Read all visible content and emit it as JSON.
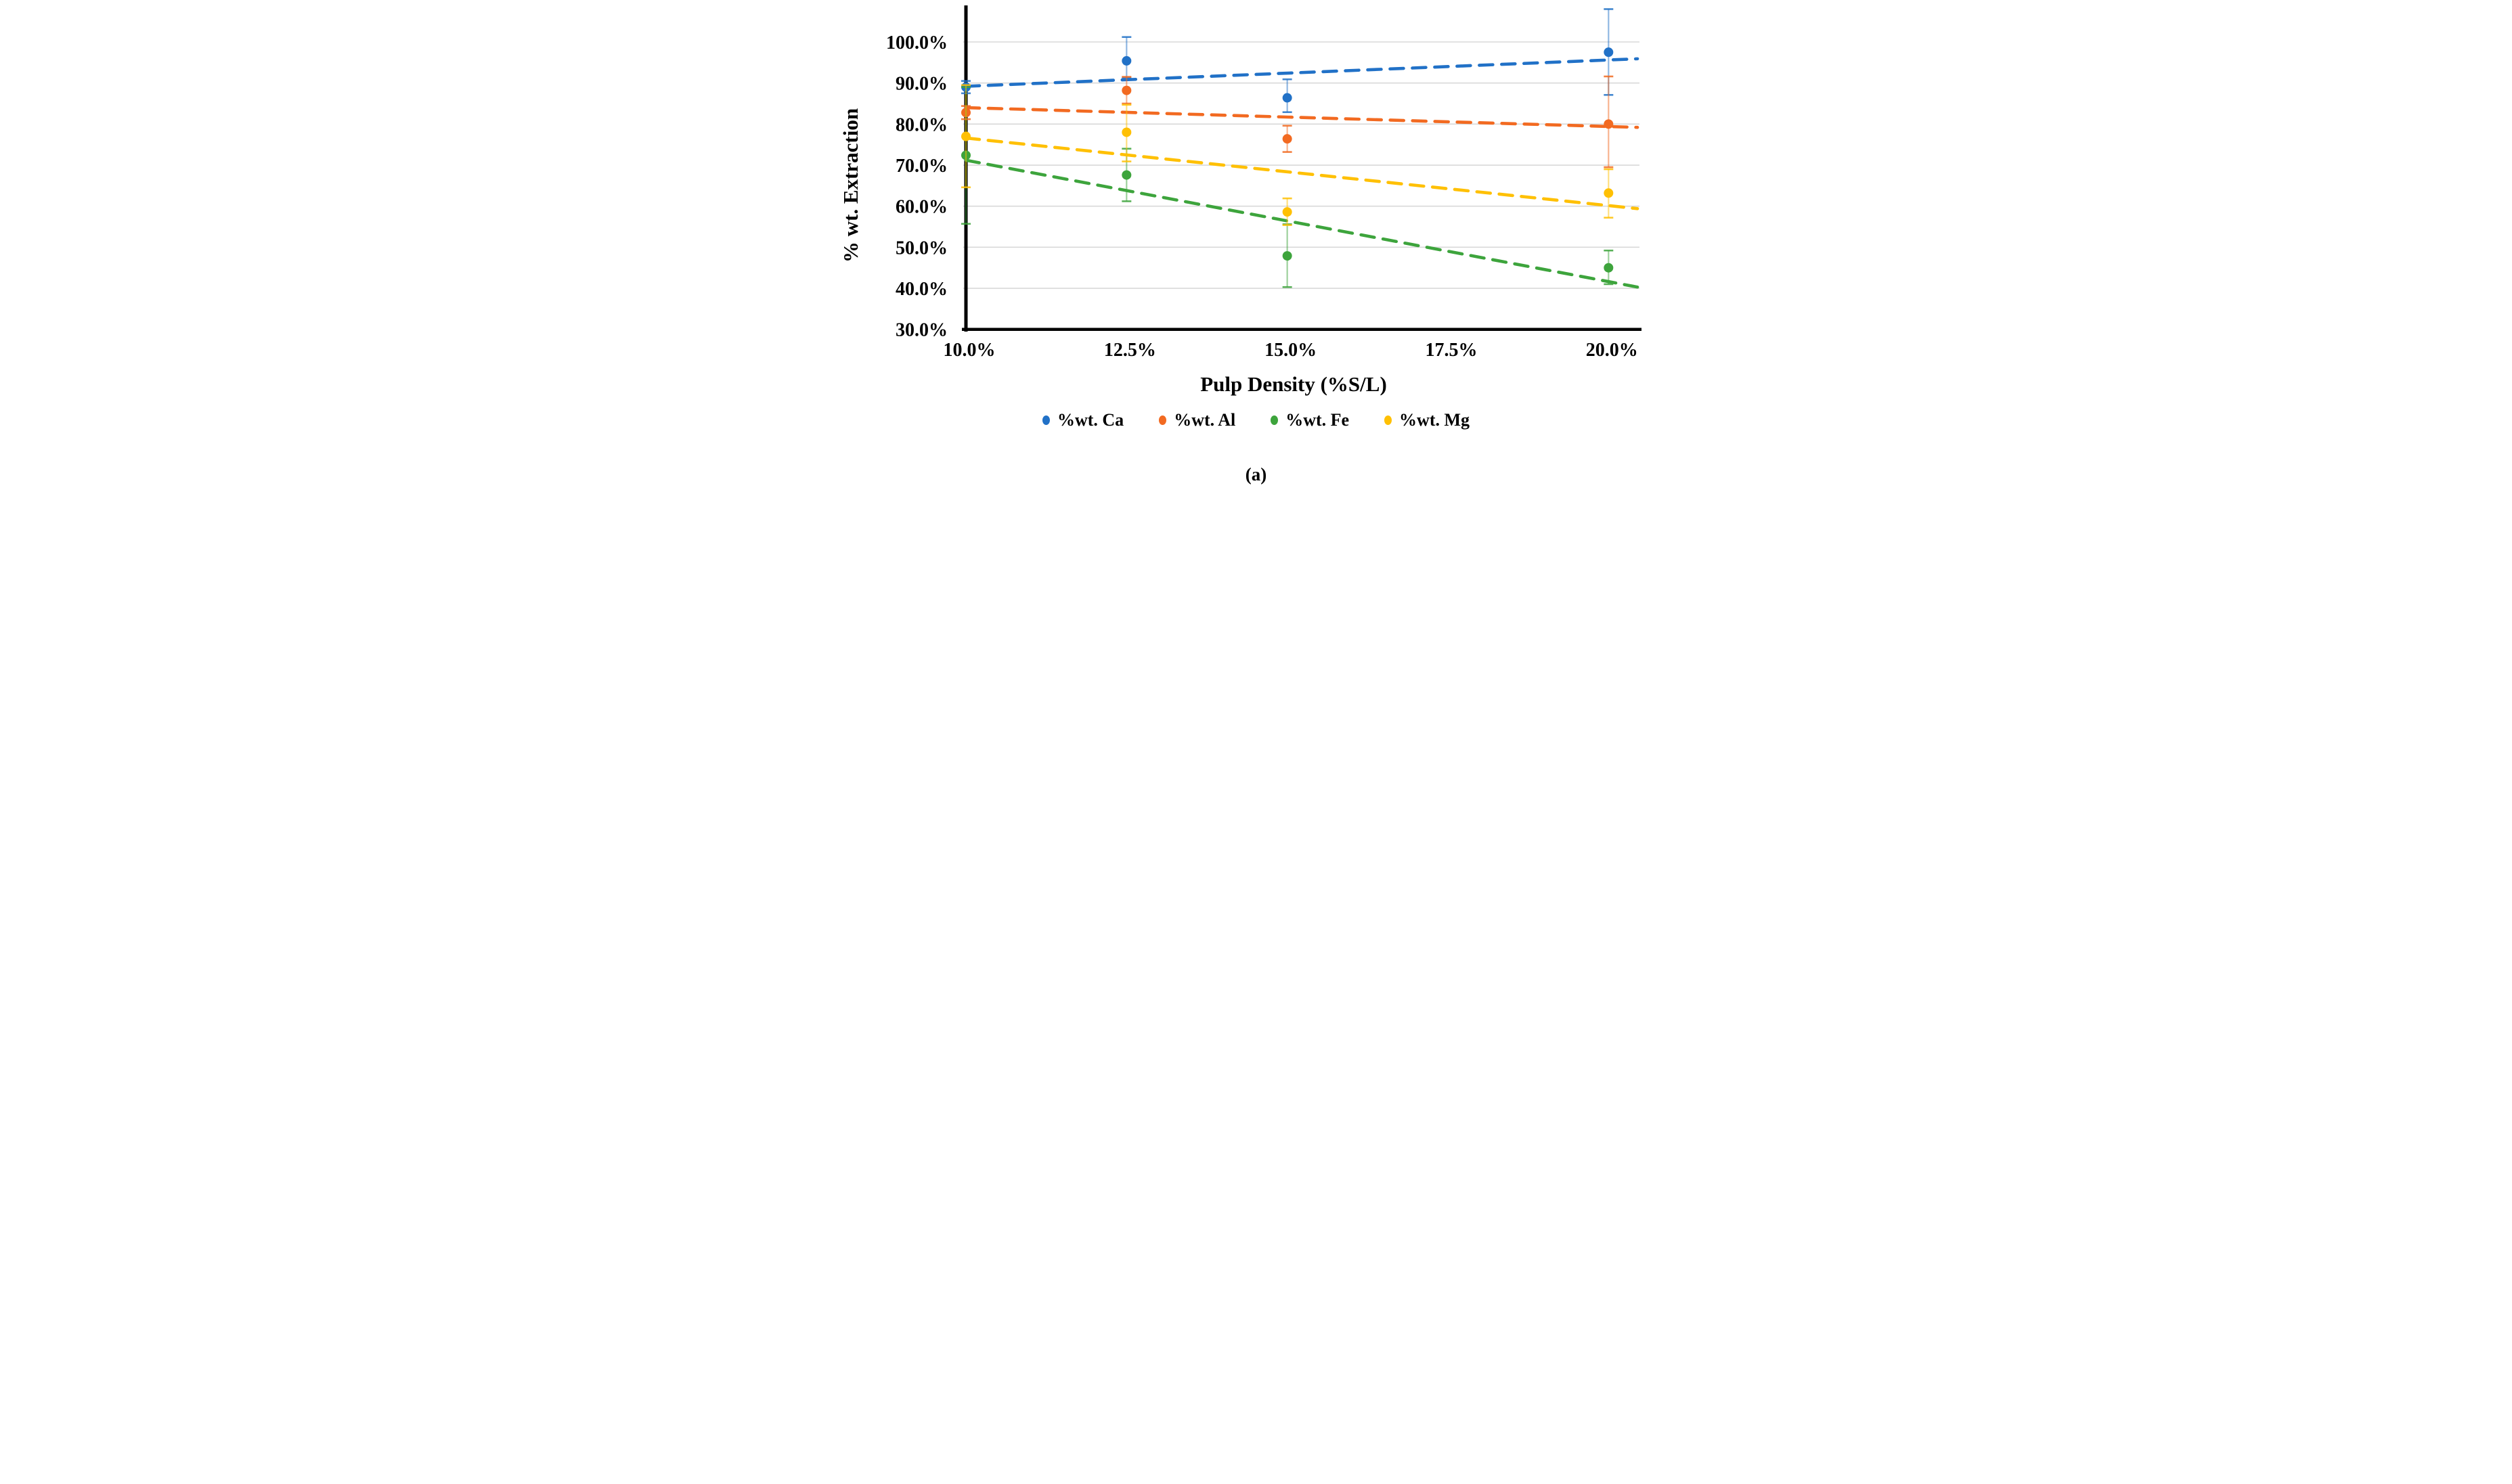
{
  "figure": {
    "caption": "(a)"
  },
  "chart_data": {
    "type": "scatter",
    "title": "",
    "xlabel": "Pulp Density (%S/L)",
    "ylabel": "% wt. Extraction",
    "xlim": [
      10,
      20.45
    ],
    "ylim": [
      30,
      108.5
    ],
    "x_tick_values": [
      10,
      12.5,
      15,
      17.5,
      20
    ],
    "x_tick_labels": [
      "10.0%",
      "12.5%",
      "15.0%",
      "17.5%",
      "20.0%"
    ],
    "y_tick_values": [
      100,
      90,
      80,
      70,
      60,
      50,
      40,
      30
    ],
    "y_tick_labels": [
      "100.0%",
      "90.0%",
      "80.0%",
      "70.0%",
      "60.0%",
      "50.0%",
      "40.0%",
      "30.0%"
    ],
    "grid": "horizontal",
    "grid_color": "#D8D8D8",
    "axis_color": "#000000",
    "legend_position": "bottom",
    "marker": "circle",
    "trendline_style": "dashed",
    "series": [
      {
        "id": "ca",
        "name": "%wt. Ca",
        "color": "#2171C7",
        "x": [
          10,
          12.5,
          15,
          20
        ],
        "y": [
          89.0,
          95.4,
          86.4,
          97.5
        ],
        "y_err_low": [
          87.5,
          91.3,
          82.9,
          87.1
        ],
        "y_err_high": [
          90.5,
          101.2,
          90.9,
          108.0
        ],
        "trendline": {
          "x_start": 10,
          "y_start": 89.2,
          "x_end": 20.45,
          "y_end": 95.9
        }
      },
      {
        "id": "al",
        "name": "%wt. Al",
        "color": "#F26A21",
        "x": [
          10,
          12.5,
          15,
          20
        ],
        "y": [
          82.8,
          88.2,
          76.4,
          80.0
        ],
        "y_err_low": [
          81.2,
          85.0,
          73.2,
          69.5
        ],
        "y_err_high": [
          84.4,
          91.5,
          79.6,
          91.6
        ],
        "trendline": {
          "x_start": 10,
          "y_start": 84.0,
          "x_end": 20.45,
          "y_end": 79.2
        }
      },
      {
        "id": "fe",
        "name": "%wt. Fe",
        "color": "#3DA43C",
        "x": [
          10,
          12.5,
          15,
          20
        ],
        "y": [
          72.4,
          67.6,
          47.9,
          45.0
        ],
        "y_err_low": [
          55.7,
          61.2,
          40.3,
          41.0
        ],
        "y_err_high": [
          89.0,
          74.0,
          55.6,
          49.2
        ],
        "trendline": {
          "x_start": 10,
          "y_start": 71.2,
          "x_end": 20.45,
          "y_end": 40.3
        }
      },
      {
        "id": "mg",
        "name": "%wt. Mg",
        "color": "#FFC003",
        "x": [
          10,
          12.5,
          15,
          20
        ],
        "y": [
          77.0,
          78.0,
          58.6,
          63.2
        ],
        "y_err_low": [
          64.6,
          70.9,
          55.4,
          57.2
        ],
        "y_err_high": [
          89.5,
          84.7,
          61.9,
          69.0
        ],
        "trendline": {
          "x_start": 10,
          "y_start": 76.6,
          "x_end": 20.45,
          "y_end": 59.4
        }
      }
    ]
  }
}
